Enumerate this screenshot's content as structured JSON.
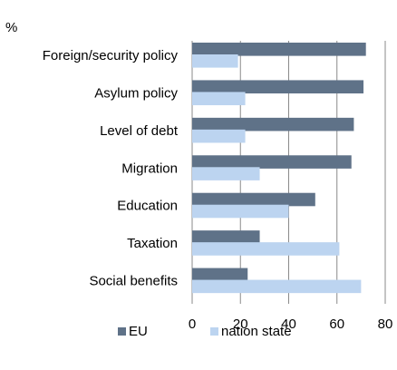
{
  "chart_data": {
    "type": "bar",
    "orientation": "horizontal",
    "unit_label": "%",
    "categories": [
      "Foreign/security policy",
      "Asylum policy",
      "Level of debt",
      "Migration",
      "Education",
      "Taxation",
      "Social benefits"
    ],
    "series": [
      {
        "name": "EU",
        "color": "#5f7288",
        "values": [
          72,
          71,
          67,
          66,
          51,
          28,
          23
        ]
      },
      {
        "name": "nation state",
        "color": "#bcd4f0",
        "values": [
          19,
          22,
          22,
          28,
          40,
          61,
          70
        ]
      }
    ],
    "xlim": [
      0,
      80
    ],
    "xticks": [
      0,
      20,
      40,
      60,
      80
    ],
    "grid": "vertical",
    "legend_position": "bottom"
  }
}
